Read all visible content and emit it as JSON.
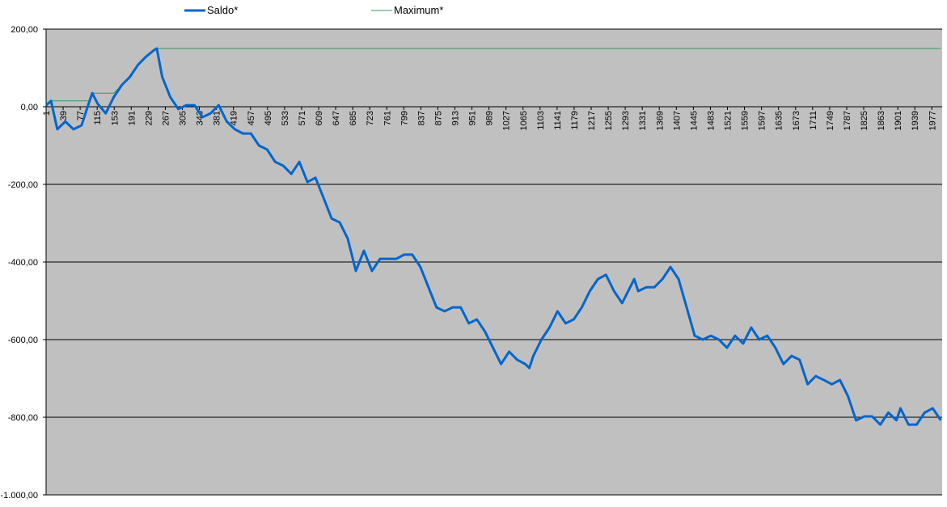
{
  "chart_data": {
    "type": "line",
    "x": [
      1,
      12,
      26,
      44,
      62,
      80,
      98,
      104,
      116,
      134,
      152,
      170,
      188,
      206,
      224,
      242,
      248,
      260,
      278,
      296,
      314,
      332,
      350,
      368,
      386,
      404,
      422,
      440,
      458,
      476,
      494,
      512,
      530,
      548,
      566,
      584,
      602,
      620,
      638,
      656,
      674,
      692,
      710,
      728,
      746,
      764,
      782,
      800,
      818,
      836,
      854,
      872,
      890,
      908,
      926,
      944,
      962,
      980,
      998,
      1016,
      1034,
      1052,
      1070,
      1079,
      1088,
      1106,
      1124,
      1142,
      1160,
      1178,
      1196,
      1214,
      1232,
      1250,
      1268,
      1286,
      1304,
      1313,
      1322,
      1340,
      1358,
      1376,
      1394,
      1412,
      1430,
      1448,
      1466,
      1484,
      1502,
      1520,
      1538,
      1556,
      1574,
      1592,
      1610,
      1628,
      1646,
      1664,
      1682,
      1700,
      1718,
      1736,
      1754,
      1772,
      1790,
      1808,
      1826,
      1844,
      1862,
      1880,
      1898,
      1907,
      1925,
      1943,
      1961,
      1979,
      1997
    ],
    "series": [
      {
        "name": "Saldo*",
        "color": "#0066cc",
        "width": 3,
        "values": [
          4,
          15,
          -58,
          -38,
          -58,
          -48,
          15,
          35,
          8,
          -17,
          25,
          56,
          77,
          108,
          129,
          146,
          150,
          77,
          25,
          -6,
          4,
          4,
          -27,
          -17,
          4,
          -38,
          -58,
          -69,
          -69,
          -100,
          -110,
          -142,
          -152,
          -173,
          -142,
          -194,
          -183,
          -235,
          -288,
          -298,
          -340,
          -423,
          -371,
          -423,
          -392,
          -392,
          -392,
          -381,
          -381,
          -413,
          -465,
          -517,
          -527,
          -517,
          -517,
          -558,
          -548,
          -579,
          -621,
          -663,
          -631,
          -652,
          -663,
          -673,
          -642,
          -600,
          -569,
          -527,
          -558,
          -548,
          -517,
          -475,
          -444,
          -433,
          -475,
          -506,
          -465,
          -444,
          -475,
          -465,
          -465,
          -444,
          -413,
          -444,
          -517,
          -590,
          -600,
          -590,
          -600,
          -621,
          -590,
          -610,
          -569,
          -600,
          -590,
          -621,
          -663,
          -642,
          -652,
          -715,
          -694,
          -704,
          -715,
          -704,
          -746,
          -808,
          -798,
          -798,
          -819,
          -788,
          -808,
          -777,
          -819,
          -819,
          -788,
          -777,
          -808
        ]
      },
      {
        "name": "Maximum*",
        "color": "#339966",
        "width": 1,
        "values": [
          4,
          15,
          15,
          15,
          15,
          15,
          15,
          35,
          35,
          35,
          35,
          56,
          77,
          108,
          129,
          146,
          150,
          150,
          150,
          150,
          150,
          150,
          150,
          150,
          150,
          150,
          150,
          150,
          150,
          150,
          150,
          150,
          150,
          150,
          150,
          150,
          150,
          150,
          150,
          150,
          150,
          150,
          150,
          150,
          150,
          150,
          150,
          150,
          150,
          150,
          150,
          150,
          150,
          150,
          150,
          150,
          150,
          150,
          150,
          150,
          150,
          150,
          150,
          150,
          150,
          150,
          150,
          150,
          150,
          150,
          150,
          150,
          150,
          150,
          150,
          150,
          150,
          150,
          150,
          150,
          150,
          150,
          150,
          150,
          150,
          150,
          150,
          150,
          150,
          150,
          150,
          150,
          150,
          150,
          150,
          150,
          150,
          150,
          150,
          150,
          150,
          150,
          150,
          150,
          150,
          150,
          150,
          150,
          150,
          150,
          150,
          150,
          150,
          150,
          150,
          150,
          150
        ]
      }
    ],
    "xlim": [
      1,
      2000
    ],
    "xticks": [
      1,
      39,
      77,
      115,
      153,
      191,
      229,
      267,
      305,
      343,
      381,
      419,
      457,
      495,
      533,
      571,
      609,
      647,
      685,
      723,
      761,
      799,
      837,
      875,
      913,
      951,
      989,
      1027,
      1065,
      1103,
      1141,
      1179,
      1217,
      1255,
      1293,
      1331,
      1369,
      1407,
      1445,
      1483,
      1521,
      1559,
      1597,
      1635,
      1673,
      1711,
      1749,
      1787,
      1825,
      1863,
      1901,
      1939,
      1977
    ],
    "ylim": [
      -1000,
      200
    ],
    "yticks": [
      {
        "value": 200,
        "label": "200,00"
      },
      {
        "value": 0,
        "label": "0,00"
      },
      {
        "value": -200,
        "label": "-200,00"
      },
      {
        "value": -400,
        "label": "-400,00"
      },
      {
        "value": -600,
        "label": "-600,00"
      },
      {
        "value": -800,
        "label": "-800,00"
      },
      {
        "value": -1000,
        "label": "-1.000,00"
      }
    ],
    "negative_tick_color": "#ff0000",
    "plot_background": "#c0c0c0",
    "grid": true,
    "legend": "top"
  }
}
